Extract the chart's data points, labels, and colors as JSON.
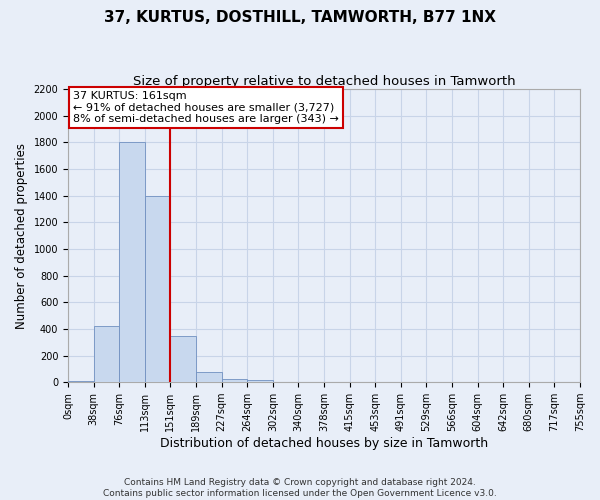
{
  "title": "37, KURTUS, DOSTHILL, TAMWORTH, B77 1NX",
  "subtitle": "Size of property relative to detached houses in Tamworth",
  "xlabel": "Distribution of detached houses by size in Tamworth",
  "ylabel": "Number of detached properties",
  "bar_color": "#c8d8ee",
  "bar_edge_color": "#7090c0",
  "grid_color": "#c8d4e8",
  "background_color": "#e8eef8",
  "bin_labels": [
    "0sqm",
    "38sqm",
    "76sqm",
    "113sqm",
    "151sqm",
    "189sqm",
    "227sqm",
    "264sqm",
    "302sqm",
    "340sqm",
    "378sqm",
    "415sqm",
    "453sqm",
    "491sqm",
    "529sqm",
    "566sqm",
    "604sqm",
    "642sqm",
    "680sqm",
    "717sqm",
    "755sqm"
  ],
  "bar_values": [
    10,
    420,
    1800,
    1400,
    350,
    80,
    25,
    15,
    5,
    0,
    0,
    0,
    0,
    0,
    0,
    0,
    0,
    0,
    0,
    0
  ],
  "vline_x": 4.0,
  "vline_color": "#cc0000",
  "annotation_text": "37 KURTUS: 161sqm\n← 91% of detached houses are smaller (3,727)\n8% of semi-detached houses are larger (343) →",
  "annotation_box_color": "#ffffff",
  "annotation_box_edge": "#cc0000",
  "ylim": [
    0,
    2200
  ],
  "yticks": [
    0,
    200,
    400,
    600,
    800,
    1000,
    1200,
    1400,
    1600,
    1800,
    2000,
    2200
  ],
  "footer": "Contains HM Land Registry data © Crown copyright and database right 2024.\nContains public sector information licensed under the Open Government Licence v3.0.",
  "title_fontsize": 11,
  "subtitle_fontsize": 9.5,
  "ylabel_fontsize": 8.5,
  "xlabel_fontsize": 9,
  "tick_fontsize": 7,
  "annotation_fontsize": 8,
  "footer_fontsize": 6.5
}
